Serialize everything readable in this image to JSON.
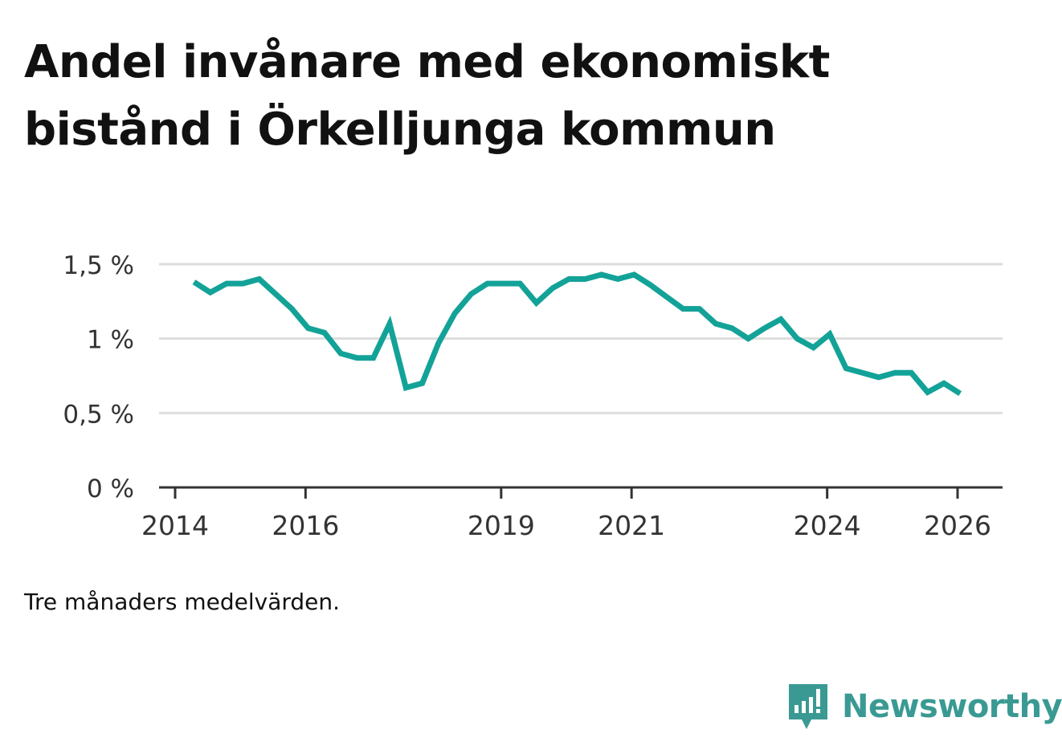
{
  "title_lines": [
    "Andel invånare med ekonomiskt",
    "bistånd i Örkelljunga kommun"
  ],
  "note": "Tre månaders medelvärden.",
  "brand": {
    "name": "Newsworthy",
    "icon": "newsworthy-logo-icon"
  },
  "colors": {
    "line": "#13a298",
    "grid": "#dddddd",
    "axis": "#333333",
    "text": "#111111",
    "tick_text": "#333333",
    "brand": "#3a9a93"
  },
  "chart_data": {
    "type": "line",
    "title": "Andel invånare med ekonomiskt bistånd i Örkelljunga kommun",
    "xlabel": "",
    "ylabel": "",
    "ylim": [
      0,
      1.5
    ],
    "xlim": [
      2014.0,
      2026.35
    ],
    "grid": true,
    "y_ticks": [
      {
        "value": 0,
        "label": "0 %"
      },
      {
        "value": 0.5,
        "label": "0,5 %"
      },
      {
        "value": 1,
        "label": "1 %"
      },
      {
        "value": 1.5,
        "label": "1,5 %"
      }
    ],
    "x_ticks": [
      {
        "value": 2014,
        "label": "2014"
      },
      {
        "value": 2016,
        "label": "2016"
      },
      {
        "value": 2019,
        "label": "2019"
      },
      {
        "value": 2021,
        "label": "2021"
      },
      {
        "value": 2024,
        "label": "2024"
      },
      {
        "value": 2026,
        "label": "2026"
      }
    ],
    "series": [
      {
        "name": "Andel invånare med ekonomiskt bistånd",
        "x": [
          2014.29,
          2014.54,
          2014.79,
          2015.04,
          2015.29,
          2015.54,
          2015.79,
          2016.04,
          2016.29,
          2016.54,
          2016.79,
          2017.04,
          2017.29,
          2017.54,
          2017.79,
          2018.04,
          2018.29,
          2018.54,
          2018.79,
          2019.04,
          2019.29,
          2019.54,
          2019.79,
          2020.04,
          2020.29,
          2020.54,
          2020.79,
          2021.04,
          2021.29,
          2021.54,
          2021.79,
          2022.04,
          2022.29,
          2022.54,
          2022.79,
          2023.04,
          2023.29,
          2023.54,
          2023.79,
          2024.04,
          2024.29,
          2024.54,
          2024.79,
          2025.04,
          2025.29,
          2025.54,
          2025.79,
          2026.04
        ],
        "values": [
          1.38,
          1.31,
          1.37,
          1.37,
          1.4,
          1.3,
          1.2,
          1.07,
          1.04,
          0.9,
          0.87,
          0.87,
          1.1,
          0.67,
          0.7,
          0.97,
          1.17,
          1.3,
          1.37,
          1.37,
          1.37,
          1.24,
          1.34,
          1.4,
          1.4,
          1.43,
          1.4,
          1.43,
          1.36,
          1.28,
          1.2,
          1.2,
          1.1,
          1.07,
          1.0,
          1.07,
          1.13,
          1.0,
          0.94,
          1.03,
          0.8,
          0.77,
          0.74,
          0.77,
          0.77,
          0.64,
          0.7,
          0.63
        ]
      }
    ]
  }
}
